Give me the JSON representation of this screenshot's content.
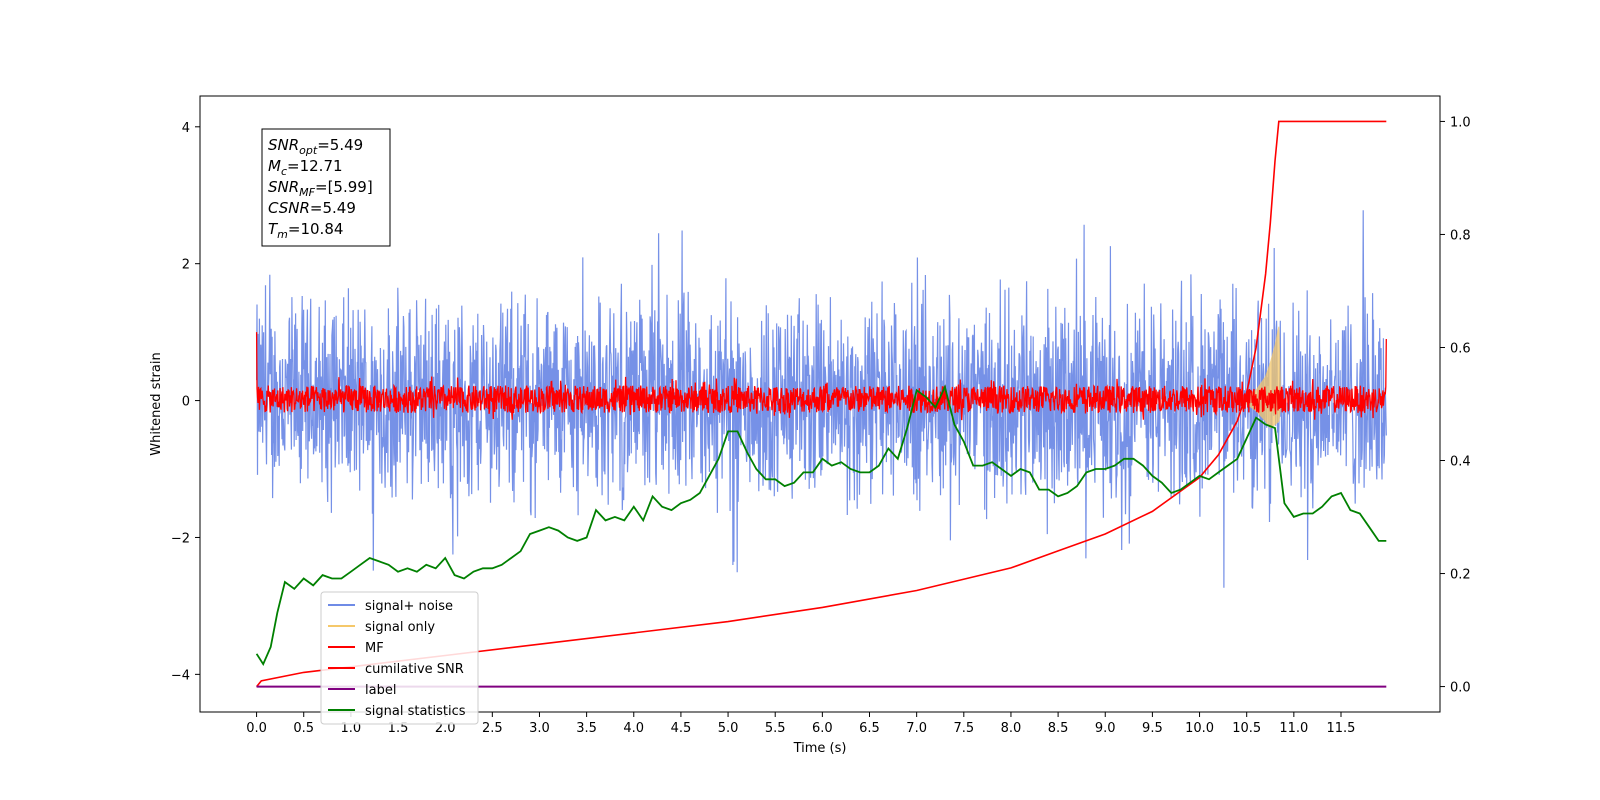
{
  "chart_data": {
    "type": "line",
    "title": "",
    "xlabel": "Time (s)",
    "ylabel": "Whitened strain",
    "xlim": [
      -0.6,
      12.55
    ],
    "ylim": [
      -4.55,
      4.45
    ],
    "y2lim": [
      -0.045,
      1.045
    ],
    "xticks": [
      "0.0",
      "0.5",
      "1.0",
      "1.5",
      "2.0",
      "2.5",
      "3.0",
      "3.5",
      "4.0",
      "4.5",
      "5.0",
      "5.5",
      "6.0",
      "6.5",
      "7.0",
      "7.5",
      "8.0",
      "8.5",
      "9.0",
      "9.5",
      "10.0",
      "10.5",
      "11.0",
      "11.5"
    ],
    "yticks": [
      "4",
      "2",
      "0",
      "−2",
      "−4"
    ],
    "y2ticks": [
      "1.0",
      "0.8",
      "0.6",
      "0.4",
      "0.2",
      "0.0"
    ],
    "grid": false,
    "legend_position": "lower-left",
    "legend": [
      {
        "label": "signal+ noise",
        "color": "#6f8be6"
      },
      {
        "label": "signal only",
        "color": "#f5c86a"
      },
      {
        "label": "MF",
        "color": "#ff0000"
      },
      {
        "label": "cumilative SNR",
        "color": "#ff0000"
      },
      {
        "label": "label",
        "color": "#800080"
      },
      {
        "label": "signal statistics",
        "color": "#008000"
      }
    ],
    "annotation": {
      "lines": [
        {
          "base": "SNR",
          "sub": "opt",
          "value": "=5.49"
        },
        {
          "base": "M",
          "sub": "c",
          "value": "=12.71"
        },
        {
          "base": "SNR",
          "sub": "MF",
          "value": "=[5.99]"
        },
        {
          "base": "CSNR",
          "sub": "",
          "value": "=5.49"
        },
        {
          "base": "T",
          "sub": "m",
          "value": "=10.84"
        }
      ]
    },
    "series": [
      {
        "name": "signal+ noise",
        "color": "#6f8be6",
        "axis": "left",
        "description": "noise trace",
        "x_range": [
          0,
          11.98
        ],
        "envelope": [
          -2.6,
          2.6
        ]
      },
      {
        "name": "signal only",
        "color": "#f5c86a",
        "axis": "left",
        "x": [
          10.5,
          10.6,
          10.7,
          10.75,
          10.8,
          10.84,
          10.86
        ],
        "upper": [
          0.05,
          0.15,
          0.35,
          0.55,
          0.8,
          1.08,
          0.1
        ],
        "lower": [
          -0.05,
          -0.15,
          -0.3,
          -0.4,
          -0.35,
          -0.3,
          -0.1
        ]
      },
      {
        "name": "MF",
        "color": "#ff0000",
        "axis": "left",
        "x_range": [
          0,
          11.98
        ],
        "envelope": [
          -0.25,
          0.3
        ]
      },
      {
        "name": "cumilative SNR",
        "color": "#ff0000",
        "axis": "right",
        "x": [
          0,
          0.05,
          0.5,
          1,
          2,
          3,
          4,
          5,
          6,
          7,
          8,
          8.5,
          9,
          9.5,
          10,
          10.2,
          10.4,
          10.5,
          10.6,
          10.7,
          10.75,
          10.8,
          10.84,
          11.5,
          11.98
        ],
        "values": [
          0.0,
          0.01,
          0.025,
          0.035,
          0.055,
          0.075,
          0.095,
          0.115,
          0.14,
          0.17,
          0.21,
          0.24,
          0.27,
          0.31,
          0.37,
          0.41,
          0.47,
          0.52,
          0.6,
          0.73,
          0.82,
          0.93,
          1.0,
          1.0,
          1.0
        ]
      },
      {
        "name": "label",
        "color": "#800080",
        "axis": "right",
        "x": [
          0,
          11.98
        ],
        "values": [
          0.0,
          0.0
        ]
      },
      {
        "name": "signal statistics",
        "color": "#008000",
        "axis": "left",
        "x": [
          0.0,
          0.07,
          0.15,
          0.22,
          0.3,
          0.4,
          0.5,
          0.6,
          0.7,
          0.8,
          0.9,
          1.0,
          1.1,
          1.2,
          1.3,
          1.4,
          1.5,
          1.6,
          1.7,
          1.8,
          1.9,
          2.0,
          2.1,
          2.2,
          2.3,
          2.4,
          2.5,
          2.6,
          2.7,
          2.8,
          2.9,
          3.0,
          3.1,
          3.2,
          3.3,
          3.4,
          3.5,
          3.6,
          3.7,
          3.8,
          3.9,
          4.0,
          4.1,
          4.2,
          4.3,
          4.4,
          4.5,
          4.6,
          4.7,
          4.8,
          4.9,
          5.0,
          5.1,
          5.2,
          5.3,
          5.4,
          5.5,
          5.6,
          5.7,
          5.8,
          5.9,
          6.0,
          6.1,
          6.2,
          6.3,
          6.4,
          6.5,
          6.6,
          6.7,
          6.8,
          6.9,
          7.0,
          7.1,
          7.2,
          7.3,
          7.4,
          7.5,
          7.6,
          7.7,
          7.8,
          7.9,
          8.0,
          8.1,
          8.2,
          8.3,
          8.4,
          8.5,
          8.6,
          8.7,
          8.8,
          8.9,
          9.0,
          9.1,
          9.2,
          9.3,
          9.4,
          9.5,
          9.6,
          9.7,
          9.8,
          9.9,
          10.0,
          10.1,
          10.2,
          10.3,
          10.4,
          10.5,
          10.6,
          10.7,
          10.8,
          10.9,
          11.0,
          11.1,
          11.2,
          11.3,
          11.4,
          11.5,
          11.6,
          11.7,
          11.8,
          11.9,
          11.98
        ],
        "values": [
          -3.7,
          -3.85,
          -3.6,
          -3.1,
          -2.65,
          -2.75,
          -2.6,
          -2.7,
          -2.55,
          -2.6,
          -2.6,
          -2.5,
          -2.4,
          -2.3,
          -2.35,
          -2.4,
          -2.5,
          -2.45,
          -2.5,
          -2.4,
          -2.45,
          -2.3,
          -2.55,
          -2.6,
          -2.5,
          -2.45,
          -2.45,
          -2.4,
          -2.3,
          -2.2,
          -1.95,
          -1.9,
          -1.85,
          -1.9,
          -2.0,
          -2.05,
          -2.0,
          -1.6,
          -1.75,
          -1.7,
          -1.75,
          -1.55,
          -1.75,
          -1.4,
          -1.55,
          -1.6,
          -1.5,
          -1.45,
          -1.35,
          -1.1,
          -0.85,
          -0.45,
          -0.45,
          -0.75,
          -1.0,
          -1.15,
          -1.15,
          -1.25,
          -1.2,
          -1.05,
          -1.05,
          -0.85,
          -0.95,
          -0.9,
          -1.0,
          -1.05,
          -1.05,
          -0.95,
          -0.7,
          -0.85,
          -0.4,
          0.15,
          0.05,
          -0.1,
          0.2,
          -0.35,
          -0.6,
          -0.95,
          -0.95,
          -0.9,
          -1.0,
          -1.1,
          -1.0,
          -1.05,
          -1.3,
          -1.3,
          -1.4,
          -1.35,
          -1.25,
          -1.05,
          -1.0,
          -1.0,
          -0.95,
          -0.85,
          -0.85,
          -0.95,
          -1.1,
          -1.2,
          -1.35,
          -1.3,
          -1.2,
          -1.1,
          -1.15,
          -1.05,
          -0.95,
          -0.85,
          -0.55,
          -0.25,
          -0.35,
          -0.4,
          -1.5,
          -1.7,
          -1.65,
          -1.65,
          -1.55,
          -1.4,
          -1.35,
          -1.6,
          -1.65,
          -1.85,
          -2.05,
          -2.05
        ]
      }
    ]
  }
}
